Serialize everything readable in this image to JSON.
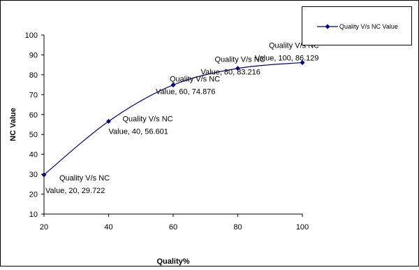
{
  "chart_data": {
    "type": "line",
    "xlabel": "Quality%",
    "ylabel": "NC Value",
    "xlim": [
      20,
      100
    ],
    "ylim": [
      10,
      100
    ],
    "x_ticks": [
      20,
      40,
      60,
      80,
      100
    ],
    "y_ticks": [
      10,
      20,
      30,
      40,
      50,
      60,
      70,
      80,
      90,
      100
    ],
    "grid": false,
    "legend_position": "top-right",
    "series": [
      {
        "name": "Quality V/s NC Value",
        "color": "#000080",
        "marker": "diamond",
        "smooth": true,
        "x": [
          20,
          40,
          60,
          80,
          100
        ],
        "values": [
          29.722,
          56.601,
          74.876,
          83.216,
          86.129
        ]
      }
    ],
    "data_labels": [
      {
        "line1": "Quality V/s NC",
        "line2": "Value, 20, 29.722"
      },
      {
        "line1": "Quality V/s NC",
        "line2": "Value, 40, 56.601"
      },
      {
        "line1": "Quality V/s NC",
        "line2": "Value, 60, 74.876"
      },
      {
        "line1": "Quality V/s NC",
        "line2": "Value, 80, 83.216"
      },
      {
        "line1": "Quality V/s NC",
        "line2": "Value, 100, 86.129"
      }
    ]
  }
}
